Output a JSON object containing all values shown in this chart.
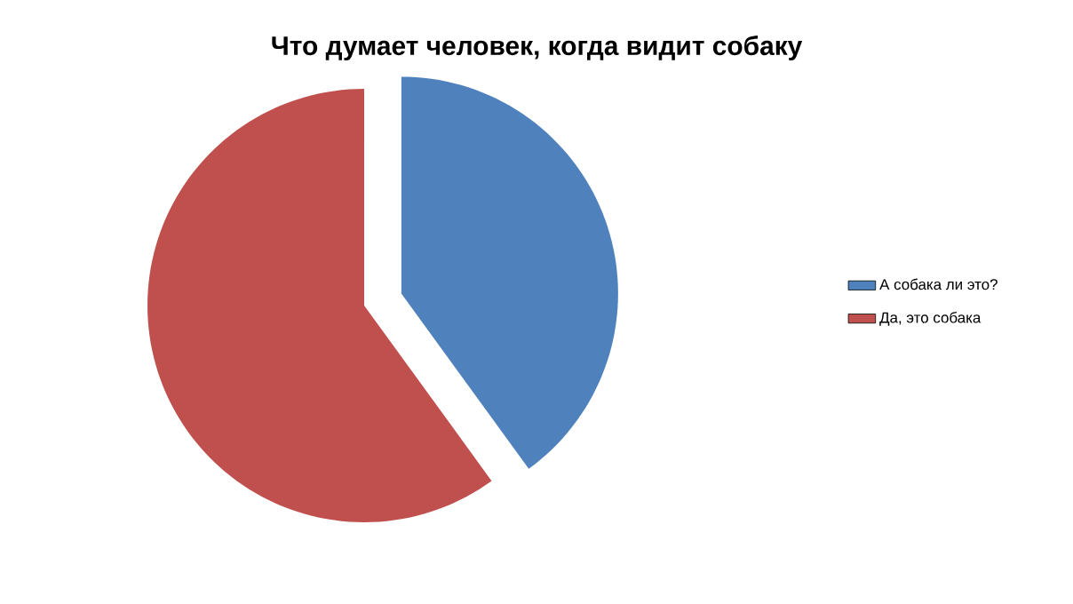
{
  "chart_data": {
    "type": "pie",
    "title": "Что думает человек, когда видит собаку",
    "categories": [
      "А собака ли это?",
      "Да, это собака"
    ],
    "values": [
      40,
      60
    ],
    "colors": [
      "#4f81bd",
      "#c0504d"
    ],
    "legend": "right"
  }
}
